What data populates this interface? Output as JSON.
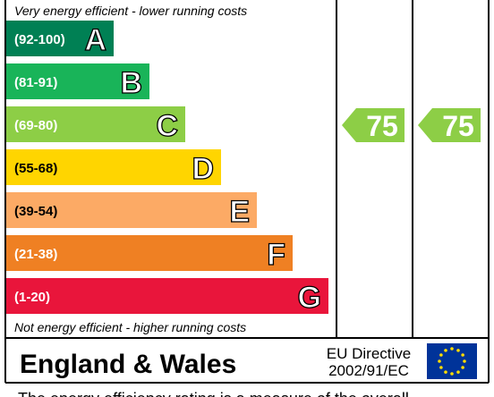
{
  "top_note": "Very energy efficient - lower running costs",
  "bands": [
    {
      "range": "(92-100)",
      "letter": "A",
      "color": "#008054",
      "text_color": "#ffffff"
    },
    {
      "range": "(81-91)",
      "letter": "B",
      "color": "#19b459",
      "text_color": "#ffffff"
    },
    {
      "range": "(69-80)",
      "letter": "C",
      "color": "#8dce46",
      "text_color": "#ffffff"
    },
    {
      "range": "(55-68)",
      "letter": "D",
      "color": "#ffd500",
      "text_color": "#000000"
    },
    {
      "range": "(39-54)",
      "letter": "E",
      "color": "#fcaa65",
      "text_color": "#000000"
    },
    {
      "range": "(21-38)",
      "letter": "F",
      "color": "#ef8023",
      "text_color": "#ffffff"
    },
    {
      "range": "(1-20)",
      "letter": "G",
      "color": "#e9153b",
      "text_color": "#ffffff"
    }
  ],
  "ratings": [
    {
      "value": 75,
      "band": 2,
      "color": "#8dce46"
    },
    {
      "value": 75,
      "band": 2,
      "color": "#8dce46"
    }
  ],
  "bottom_note": "Not energy efficient - higher running costs",
  "footer": {
    "region": "England & Wales",
    "directive": [
      "EU Directive",
      "2002/91/EC"
    ]
  },
  "caption": "The energy efficiency rating is a measure of the overall"
}
